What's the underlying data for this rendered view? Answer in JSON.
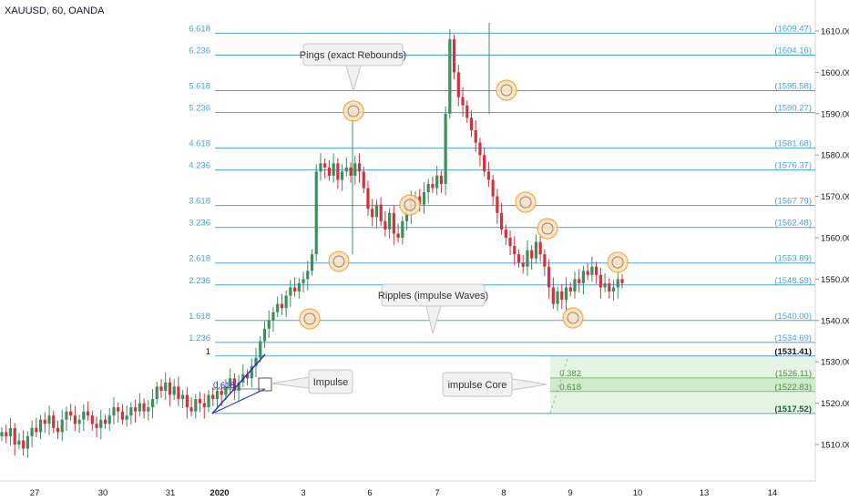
{
  "header": {
    "title": "XAUUSD, 60, OANDA"
  },
  "colors": {
    "up": "#3c8f5a",
    "down": "#d1333d",
    "fib": "#4aa3d8",
    "fibDark": "#2b6d3a",
    "ring": "#f4a43a",
    "core": "#e6f4e4",
    "coreDark": "#cfe9cb",
    "impulse": "#1f2ad6",
    "axis": "#555555"
  },
  "chart_data": {
    "type": "candlestick",
    "symbol": "XAUUSD",
    "interval": "60",
    "ylim": [
      1503,
      1614
    ],
    "y_ticks": [
      1510,
      1520,
      1530,
      1540,
      1550,
      1560,
      1570,
      1580,
      1590,
      1600,
      1610
    ],
    "x_ticks": [
      "27",
      "30",
      "31",
      "2020",
      "3",
      "6",
      "7",
      "8",
      "9",
      "10",
      "13",
      "14"
    ],
    "fib_levels": [
      {
        "ratio": "6.618",
        "price": 1609.47,
        "label": "(1609.47)"
      },
      {
        "ratio": "6.236",
        "price": 1604.16,
        "label": "(1604.16)"
      },
      {
        "ratio": "5.618",
        "price": 1595.58,
        "label": "(1595.58)"
      },
      {
        "ratio": "5.236",
        "price": 1590.27,
        "label": "(1590.27)"
      },
      {
        "ratio": "4.618",
        "price": 1581.68,
        "label": "(1581.68)"
      },
      {
        "ratio": "4.236",
        "price": 1576.37,
        "label": "(1576.37)"
      },
      {
        "ratio": "3.618",
        "price": 1567.79,
        "label": "(1567.79)"
      },
      {
        "ratio": "3.236",
        "price": 1562.48,
        "label": "(1562.48)"
      },
      {
        "ratio": "2.618",
        "price": 1553.89,
        "label": "(1553.89)"
      },
      {
        "ratio": "2.236",
        "price": 1548.59,
        "label": "(1548.59)"
      },
      {
        "ratio": "1.618",
        "price": 1540.0,
        "label": "(1540.00)"
      },
      {
        "ratio": "1.236",
        "price": 1534.69,
        "label": "(1534.69)"
      },
      {
        "ratio": "1",
        "price": 1531.41,
        "label": "(1531.41)"
      }
    ],
    "core_levels": [
      {
        "ratio": "0.382",
        "price": 1526.11,
        "label": "(1526.11)"
      },
      {
        "ratio": "0.618",
        "price": 1522.83,
        "label": "(1522.83)"
      },
      {
        "ratio": "",
        "price": 1517.52,
        "label": "(1517.52)"
      }
    ],
    "impulse_label": "0.618",
    "annotations": {
      "pings": "Pings (exact Rebounds)",
      "ripples": "Ripples (impulse Waves)",
      "impulse": "Impulse",
      "core": "impulse Core"
    },
    "series": [
      {
        "name": "price",
        "close": [
          1513,
          1512,
          1514,
          1510,
          1511,
          1509,
          1512,
          1514,
          1513,
          1516,
          1515,
          1517,
          1514,
          1513,
          1516,
          1518,
          1517,
          1515,
          1516,
          1518,
          1517,
          1515,
          1514,
          1516,
          1515,
          1517,
          1519,
          1518,
          1516,
          1517,
          1519,
          1518,
          1520,
          1518,
          1519,
          1521,
          1524,
          1523,
          1525,
          1522,
          1524,
          1521,
          1522,
          1519,
          1518,
          1521,
          1520,
          1519,
          1522,
          1521,
          1523,
          1522,
          1524,
          1526,
          1523,
          1525,
          1527,
          1526,
          1529,
          1531,
          1535,
          1538,
          1540,
          1542,
          1544,
          1543,
          1546,
          1548,
          1547,
          1549,
          1550,
          1552,
          1556,
          1576,
          1578,
          1577,
          1575,
          1578,
          1574,
          1576,
          1577,
          1575,
          1578,
          1576,
          1572,
          1567,
          1565,
          1568,
          1564,
          1562,
          1566,
          1561,
          1560,
          1564,
          1566,
          1569,
          1570,
          1568,
          1571,
          1573,
          1572,
          1575,
          1573,
          1590,
          1608,
          1600,
          1594,
          1592,
          1589,
          1586,
          1583,
          1580,
          1576,
          1574,
          1570,
          1566,
          1562,
          1560,
          1558,
          1556,
          1554,
          1553,
          1557,
          1555,
          1559,
          1556,
          1553,
          1548,
          1544,
          1547,
          1545,
          1548,
          1547,
          1550,
          1549,
          1552,
          1551,
          1553,
          1551,
          1548,
          1549,
          1547,
          1548,
          1550,
          1549
        ]
      }
    ]
  }
}
